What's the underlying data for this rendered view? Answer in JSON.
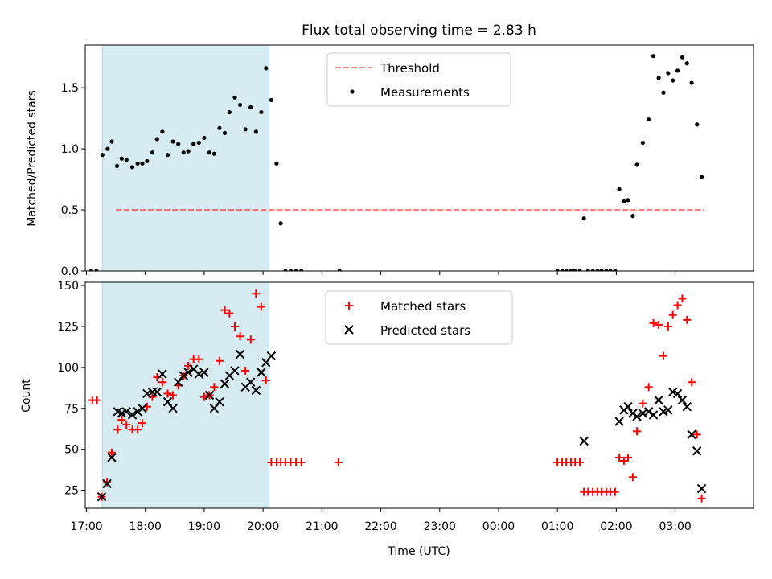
{
  "figure_title": "Flux total observing time = 2.83 h",
  "colors": {
    "shade": "#add8e6",
    "threshold": "#ff0000",
    "measurement": "#000000",
    "matched": "#ff0000",
    "predicted": "#000000"
  },
  "chart_data": [
    {
      "type": "scatter",
      "panel": "top",
      "ylabel": "Matched/Predicted stars",
      "xlabel": "",
      "ylim": [
        0,
        1.85
      ],
      "yticks": [
        0.0,
        0.5,
        1.0,
        1.5
      ],
      "ytick_labels": [
        "0.0",
        "0.5",
        "1.0",
        "1.5"
      ],
      "xlim_hours": [
        16.98,
        28.33
      ],
      "xticks_hours": [
        17,
        18,
        19,
        20,
        21,
        22,
        23,
        24,
        25,
        26,
        27
      ],
      "shaded_span_hours": [
        17.27,
        20.1
      ],
      "legend_position": "top-center",
      "threshold": {
        "name": "Threshold",
        "y": 0.5,
        "x_range_hours": [
          17.5,
          27.5
        ],
        "style": "dashed"
      },
      "series": [
        {
          "name": "Measurements",
          "marker": "dot",
          "x_hours": [
            17.08,
            17.17,
            17.27,
            17.36,
            17.43,
            17.52,
            17.6,
            17.68,
            17.78,
            17.87,
            17.95,
            18.03,
            18.12,
            18.2,
            18.29,
            18.38,
            18.47,
            18.56,
            18.65,
            18.73,
            18.82,
            18.91,
            19.0,
            19.09,
            19.17,
            19.26,
            19.35,
            19.43,
            19.52,
            19.61,
            19.7,
            19.79,
            19.88,
            19.97,
            20.05,
            20.14,
            20.23,
            20.3,
            20.38,
            20.47,
            20.56,
            20.65,
            21.3,
            25.0,
            25.08,
            25.15,
            25.23,
            25.3,
            25.38,
            25.45,
            25.52,
            25.6,
            25.68,
            25.75,
            25.83,
            25.9,
            25.98,
            26.05,
            26.13,
            26.2,
            26.28,
            26.35,
            26.45,
            26.55,
            26.63,
            26.72,
            26.8,
            26.88,
            26.96,
            27.04,
            27.12,
            27.2,
            27.28,
            27.37,
            27.45
          ],
          "y": [
            0,
            0,
            0.95,
            1.0,
            1.06,
            0.86,
            0.92,
            0.91,
            0.85,
            0.88,
            0.88,
            0.9,
            0.97,
            1.08,
            1.14,
            0.95,
            1.06,
            1.04,
            0.97,
            0.98,
            1.04,
            1.05,
            1.09,
            0.97,
            0.96,
            1.17,
            1.13,
            1.3,
            1.42,
            1.36,
            1.16,
            1.34,
            1.14,
            1.3,
            1.66,
            1.4,
            0.88,
            0.39,
            0,
            0,
            0,
            0,
            0,
            0,
            0,
            0,
            0,
            0,
            0,
            0.43,
            0,
            0,
            0,
            0,
            0,
            0,
            0,
            0.67,
            0.57,
            0.58,
            0.45,
            0.87,
            1.05,
            1.24,
            1.76,
            1.58,
            1.46,
            1.62,
            1.56,
            1.64,
            1.75,
            1.7,
            1.54,
            1.2,
            0.77
          ]
        }
      ]
    },
    {
      "type": "scatter",
      "panel": "bottom",
      "ylabel": "Count",
      "xlabel": "Time (UTC)",
      "ylim": [
        14,
        152
      ],
      "yticks": [
        25,
        50,
        75,
        100,
        125,
        150
      ],
      "ytick_labels": [
        "25",
        "50",
        "75",
        "100",
        "125",
        "150"
      ],
      "xlim_hours": [
        16.98,
        28.33
      ],
      "xticks_hours": [
        17,
        18,
        19,
        20,
        21,
        22,
        23,
        24,
        25,
        26,
        27
      ],
      "xtick_labels": [
        "17:00",
        "18:00",
        "19:00",
        "20:00",
        "21:00",
        "22:00",
        "23:00",
        "00:00",
        "01:00",
        "02:00",
        "03:00"
      ],
      "shaded_span_hours": [
        17.27,
        20.1
      ],
      "legend_position": "top-center",
      "series": [
        {
          "name": "Matched stars",
          "marker": "plus",
          "x_hours": [
            17.1,
            17.18,
            17.26,
            17.35,
            17.43,
            17.53,
            17.6,
            17.68,
            17.78,
            17.87,
            17.95,
            18.03,
            18.12,
            18.2,
            18.29,
            18.38,
            18.47,
            18.56,
            18.65,
            18.73,
            18.82,
            18.91,
            19.0,
            19.09,
            19.17,
            19.26,
            19.35,
            19.43,
            19.52,
            19.61,
            19.7,
            19.79,
            19.88,
            19.97,
            20.05,
            20.14,
            20.23,
            20.3,
            20.38,
            20.47,
            20.56,
            20.65,
            21.28,
            25.0,
            25.08,
            25.15,
            25.23,
            25.3,
            25.38,
            25.45,
            25.52,
            25.6,
            25.68,
            25.75,
            25.83,
            25.9,
            25.98,
            26.05,
            26.13,
            26.2,
            26.28,
            26.35,
            26.45,
            26.55,
            26.63,
            26.72,
            26.8,
            26.88,
            26.96,
            27.04,
            27.12,
            27.2,
            27.28,
            27.37,
            27.45
          ],
          "y": [
            80,
            80,
            21,
            30,
            48,
            62,
            68,
            65,
            62,
            62,
            66,
            76,
            82,
            94,
            91,
            84,
            83,
            89,
            95,
            101,
            105,
            105,
            82,
            83,
            88,
            104,
            135,
            133,
            125,
            119,
            98,
            117,
            145,
            137,
            92,
            42,
            42,
            42,
            42,
            42,
            42,
            42,
            42,
            42,
            42,
            42,
            42,
            42,
            42,
            24,
            24,
            24,
            24,
            24,
            24,
            24,
            24,
            45,
            43,
            45,
            33,
            61,
            78,
            88,
            127,
            126,
            107,
            125,
            132,
            138,
            142,
            129,
            91,
            59,
            20
          ]
        },
        {
          "name": "Predicted stars",
          "marker": "x",
          "x_hours": [
            17.26,
            17.35,
            17.43,
            17.53,
            17.6,
            17.68,
            17.78,
            17.87,
            17.95,
            18.03,
            18.12,
            18.2,
            18.29,
            18.38,
            18.47,
            18.56,
            18.65,
            18.73,
            18.82,
            18.91,
            19.0,
            19.09,
            19.17,
            19.26,
            19.35,
            19.43,
            19.52,
            19.61,
            19.7,
            19.79,
            19.88,
            19.97,
            20.05,
            20.14,
            25.45,
            26.05,
            26.13,
            26.2,
            26.28,
            26.35,
            26.45,
            26.55,
            26.63,
            26.72,
            26.8,
            26.88,
            26.96,
            27.04,
            27.12,
            27.2,
            27.28,
            27.37,
            27.45
          ],
          "y": [
            21,
            29,
            45,
            73,
            72,
            73,
            71,
            73,
            75,
            84,
            85,
            85,
            96,
            79,
            75,
            91,
            95,
            97,
            99,
            96,
            97,
            83,
            75,
            79,
            90,
            95,
            98,
            108,
            88,
            91,
            86,
            97,
            103,
            107,
            55,
            67,
            74,
            76,
            72,
            70,
            72,
            73,
            71,
            80,
            73,
            74,
            85,
            84,
            80,
            76,
            59,
            49,
            26
          ]
        }
      ]
    }
  ]
}
